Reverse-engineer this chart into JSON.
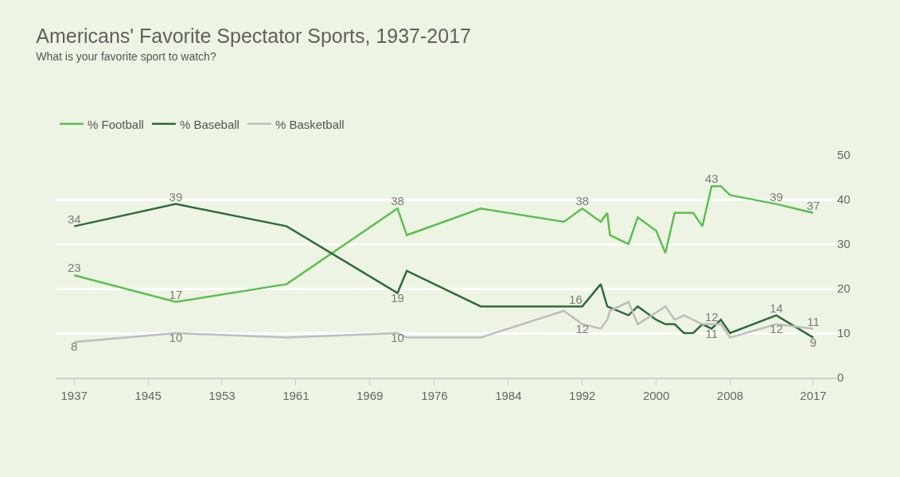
{
  "chart_data": {
    "type": "line",
    "title": "Americans' Favorite Spectator Sports, 1937-2017",
    "subtitle": "What is your favorite sport to watch?",
    "series": [
      {
        "name": "% Football",
        "color": "#5cbf4f",
        "x": [
          1937,
          1948,
          1960,
          1972,
          1973,
          1981,
          1990,
          1992,
          1994,
          1994.7,
          1995,
          1997,
          1998,
          2000,
          2001,
          2002,
          2004,
          2005,
          2006,
          2007,
          2008,
          2013,
          2017
        ],
        "values": [
          23,
          17,
          21,
          38,
          32,
          38,
          35,
          38,
          35,
          37,
          32,
          30,
          36,
          33,
          28,
          37,
          37,
          34,
          43,
          43,
          41,
          39,
          37
        ],
        "value_labels": [
          "23",
          "17",
          null,
          "38",
          null,
          null,
          null,
          "38",
          null,
          null,
          null,
          null,
          null,
          null,
          null,
          null,
          null,
          null,
          "43",
          null,
          null,
          "39",
          "37"
        ]
      },
      {
        "name": "% Baseball",
        "color": "#2e6b3c",
        "x": [
          1937,
          1948,
          1960,
          1972,
          1973,
          1981,
          1992,
          1994,
          1994.7,
          1997,
          1998,
          2000,
          2001,
          2002,
          2003,
          2004,
          2005,
          2006,
          2007,
          2008,
          2013,
          2017
        ],
        "values": [
          34,
          39,
          34,
          19,
          24,
          16,
          16,
          21,
          16,
          14,
          16,
          13,
          12,
          12,
          10,
          10,
          12,
          11,
          13,
          10,
          14,
          9
        ],
        "value_labels": [
          "34",
          "39",
          null,
          "19",
          null,
          null,
          "16",
          null,
          null,
          null,
          null,
          null,
          null,
          null,
          null,
          null,
          null,
          "11",
          null,
          null,
          "14",
          "9"
        ]
      },
      {
        "name": "% Basketball",
        "color": "#bdbdbd",
        "x": [
          1937,
          1948,
          1960,
          1972,
          1973,
          1981,
          1990,
          1992,
          1994,
          1994.7,
          1995,
          1997,
          1998,
          2001,
          2002,
          2003,
          2005,
          2006,
          2007,
          2008,
          2013,
          2017
        ],
        "values": [
          8,
          10,
          9,
          10,
          9,
          9,
          15,
          12,
          11,
          13,
          15,
          17,
          12,
          16,
          13,
          14,
          12,
          12,
          12,
          9,
          12,
          11
        ],
        "value_labels": [
          "8",
          "10",
          null,
          "10",
          null,
          null,
          null,
          "12",
          null,
          null,
          null,
          null,
          null,
          null,
          null,
          null,
          null,
          "12",
          null,
          null,
          "12",
          "11"
        ]
      }
    ],
    "xlim": [
      1935,
      2019.5
    ],
    "xticks": [
      {
        "value": 1937,
        "label": "1937"
      },
      {
        "value": 1945,
        "label": "1945"
      },
      {
        "value": 1953,
        "label": "1953"
      },
      {
        "value": 1961,
        "label": "1961"
      },
      {
        "value": 1969,
        "label": "1969"
      },
      1976,
      1984,
      1992,
      2000,
      2008,
      {
        "value": 2017,
        "label": "2017"
      }
    ],
    "ylim": [
      0,
      50
    ],
    "yticks": [
      0,
      10,
      20,
      30,
      40,
      50
    ],
    "grid": "y",
    "legend": "top left",
    "marker": "none",
    "line_style": "solid"
  }
}
